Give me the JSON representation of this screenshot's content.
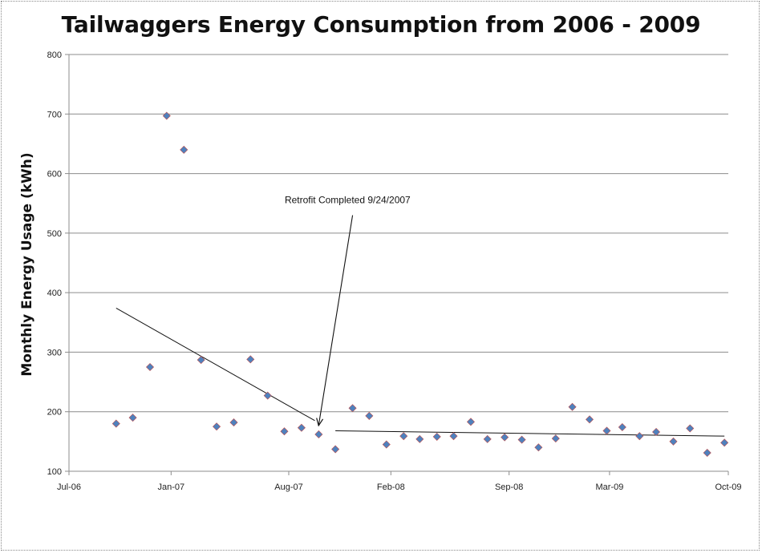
{
  "chart_data": {
    "type": "scatter",
    "title": "Tailwaggers Energy Consumption from 2006 - 2009",
    "xlabel": "",
    "ylabel": "Monthly Energy Usage (kWh)",
    "ylim": [
      100,
      800
    ],
    "yticks": [
      100,
      200,
      300,
      400,
      500,
      600,
      700,
      800
    ],
    "xlim": [
      "2006-07-01",
      "2009-10-01"
    ],
    "xticks": [
      {
        "date": "2006-07-01",
        "label": "Jul-06"
      },
      {
        "date": "2007-01-01",
        "label": "Jan-07"
      },
      {
        "date": "2007-08-01",
        "label": "Aug-07"
      },
      {
        "date": "2008-02-01",
        "label": "Feb-08"
      },
      {
        "date": "2008-09-01",
        "label": "Sep-08"
      },
      {
        "date": "2009-03-01",
        "label": "Mar-09"
      },
      {
        "date": "2009-10-01",
        "label": "Oct-09"
      }
    ],
    "grid": "horizontal",
    "marker_color": "#4f81bd",
    "points": [
      {
        "x": "2006-09-24",
        "y": 180
      },
      {
        "x": "2006-10-24",
        "y": 190
      },
      {
        "x": "2006-11-24",
        "y": 275
      },
      {
        "x": "2006-12-24",
        "y": 697
      },
      {
        "x": "2007-01-24",
        "y": 640
      },
      {
        "x": "2007-02-24",
        "y": 287
      },
      {
        "x": "2007-03-24",
        "y": 175
      },
      {
        "x": "2007-04-24",
        "y": 182
      },
      {
        "x": "2007-05-24",
        "y": 288
      },
      {
        "x": "2007-06-24",
        "y": 227
      },
      {
        "x": "2007-07-24",
        "y": 167
      },
      {
        "x": "2007-08-24",
        "y": 173
      },
      {
        "x": "2007-09-24",
        "y": 162
      },
      {
        "x": "2007-10-24",
        "y": 137
      },
      {
        "x": "2007-11-24",
        "y": 206
      },
      {
        "x": "2007-12-24",
        "y": 193
      },
      {
        "x": "2008-01-24",
        "y": 145
      },
      {
        "x": "2008-02-24",
        "y": 159
      },
      {
        "x": "2008-03-24",
        "y": 154
      },
      {
        "x": "2008-04-24",
        "y": 158
      },
      {
        "x": "2008-05-24",
        "y": 159
      },
      {
        "x": "2008-06-24",
        "y": 183
      },
      {
        "x": "2008-07-24",
        "y": 154
      },
      {
        "x": "2008-08-24",
        "y": 157
      },
      {
        "x": "2008-09-24",
        "y": 153
      },
      {
        "x": "2008-10-24",
        "y": 140
      },
      {
        "x": "2008-11-24",
        "y": 155
      },
      {
        "x": "2008-12-24",
        "y": 208
      },
      {
        "x": "2009-01-24",
        "y": 187
      },
      {
        "x": "2009-02-24",
        "y": 168
      },
      {
        "x": "2009-03-24",
        "y": 174
      },
      {
        "x": "2009-04-24",
        "y": 159
      },
      {
        "x": "2009-05-24",
        "y": 166
      },
      {
        "x": "2009-06-24",
        "y": 150
      },
      {
        "x": "2009-07-24",
        "y": 172
      },
      {
        "x": "2009-08-24",
        "y": 131
      },
      {
        "x": "2009-09-24",
        "y": 148
      }
    ],
    "trendlines": [
      {
        "x": [
          "2006-09-24",
          "2007-09-17"
        ],
        "y": [
          374,
          185
        ]
      },
      {
        "x": [
          "2007-10-24",
          "2009-09-24"
        ],
        "y": [
          168,
          159
        ]
      }
    ],
    "annotation": {
      "text": "Retrofit Completed 9/24/2007",
      "arrow_target": {
        "x": "2007-09-24",
        "y": 178
      }
    }
  }
}
